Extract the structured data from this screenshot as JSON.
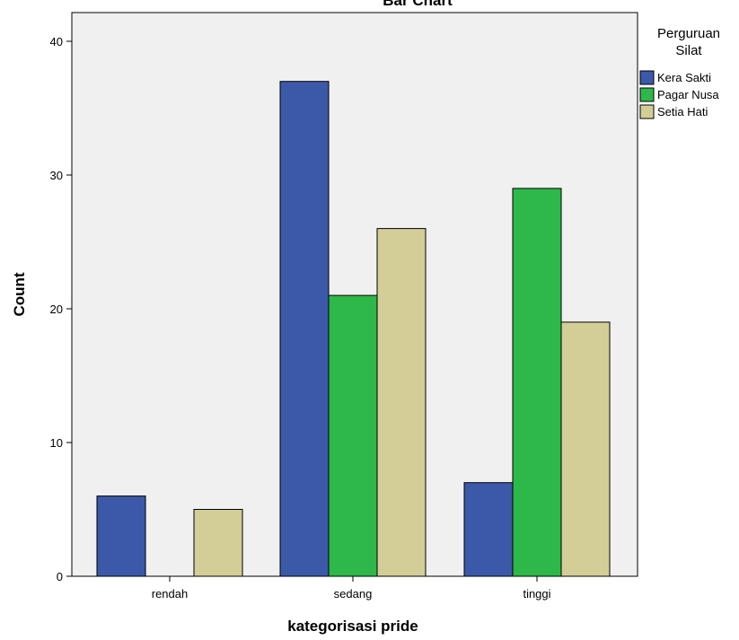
{
  "chart_data": {
    "type": "bar",
    "title": "Bar Chart",
    "xlabel": "kategorisasi pride",
    "ylabel": "Count",
    "categories": [
      "rendah",
      "sedang",
      "tinggi"
    ],
    "yticks": [
      0,
      10,
      20,
      30,
      40
    ],
    "ylim": [
      0,
      42
    ],
    "grid": false,
    "legend": {
      "title_lines": [
        "Perguruan",
        "Silat"
      ],
      "placement": "right"
    },
    "series": [
      {
        "name": "Kera Sakti",
        "color": "#3c58a8",
        "values": [
          6,
          37,
          7
        ]
      },
      {
        "name": "Pagar Nusa",
        "color": "#2fb84a",
        "values": [
          0,
          21,
          29
        ]
      },
      {
        "name": "Setia Hati",
        "color": "#d3cd98",
        "values": [
          5,
          26,
          19
        ]
      }
    ],
    "plot_background": "#f0f0f0"
  }
}
